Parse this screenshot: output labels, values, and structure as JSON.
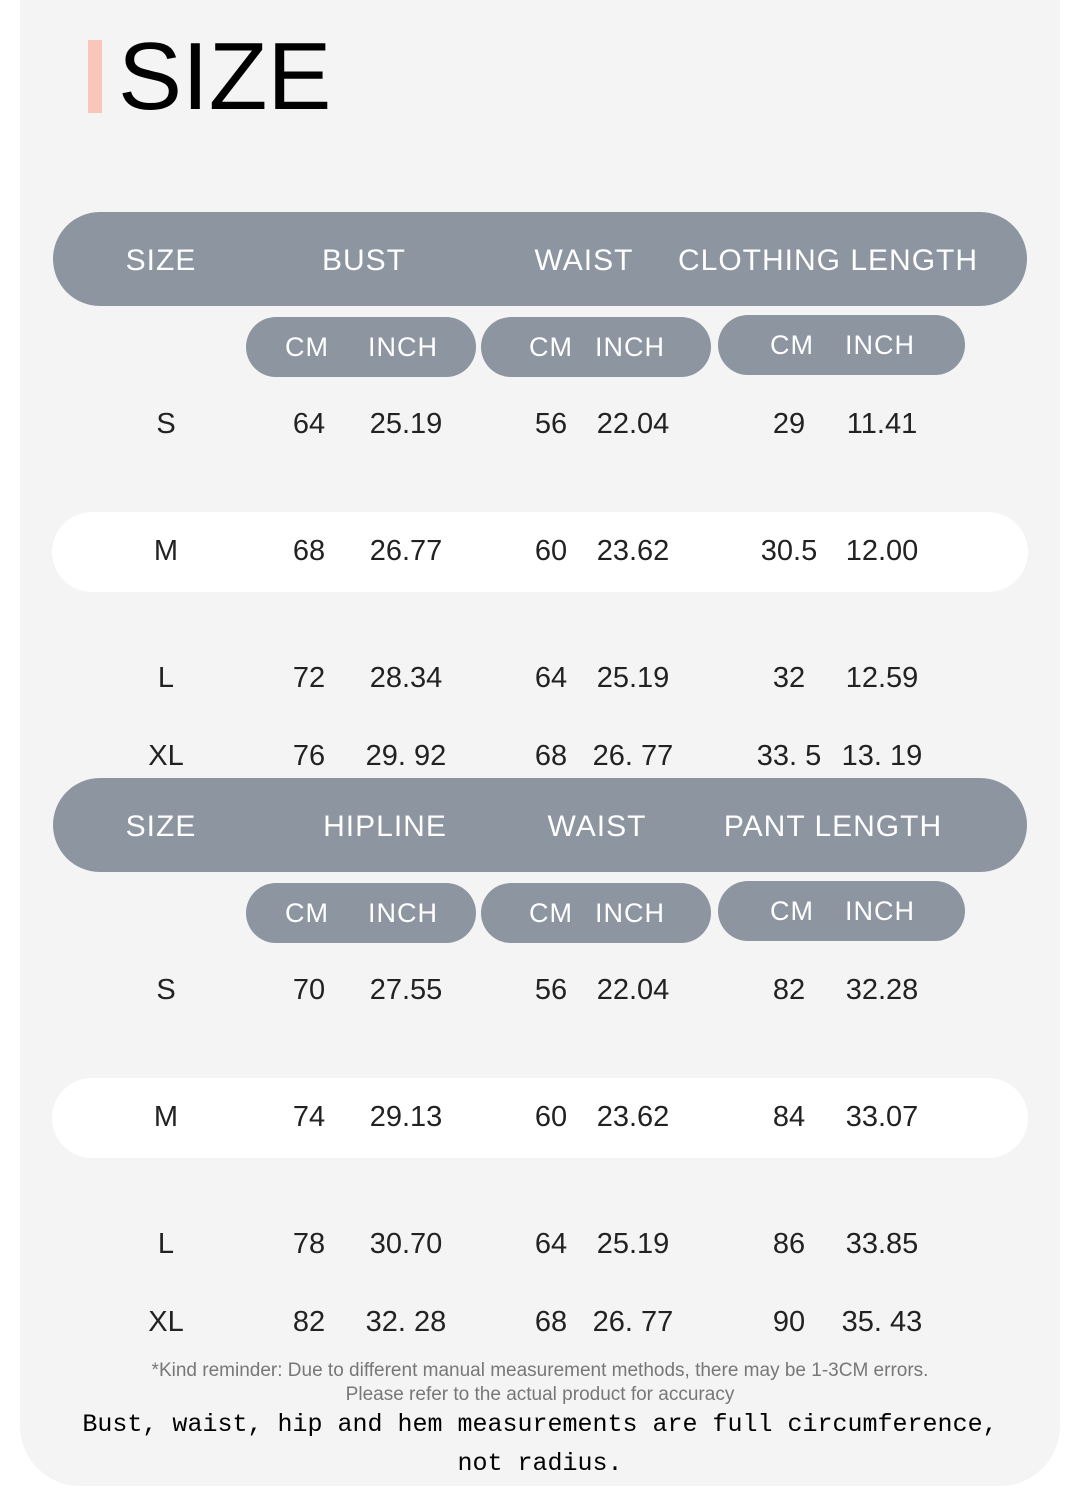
{
  "title": "SIZE",
  "colors": {
    "header_bg": "#8c95a0",
    "accent": "#f8c6ba",
    "card_bg": "#f4f4f4"
  },
  "tables": [
    {
      "headers": [
        "SIZE",
        "BUST",
        "WAIST",
        "CLOTHING LENGTH"
      ],
      "units": [
        [
          "CM",
          "INCH"
        ],
        [
          "CM",
          "INCH"
        ],
        [
          "CM",
          "INCH"
        ]
      ],
      "rows": [
        [
          "S",
          "64",
          "25.19",
          "56",
          "22.04",
          "29",
          "11.41"
        ],
        [
          "M",
          "68",
          "26.77",
          "60",
          "23.62",
          "30.5",
          "12.00"
        ],
        [
          "L",
          "72",
          "28.34",
          "64",
          "25.19",
          "32",
          "12.59"
        ],
        [
          "XL",
          "76",
          "29. 92",
          "68",
          "26. 77",
          "33. 5",
          "13. 19"
        ]
      ]
    },
    {
      "headers": [
        "SIZE",
        "HIPLINE",
        "WAIST",
        "PANT LENGTH"
      ],
      "units": [
        [
          "CM",
          "INCH"
        ],
        [
          "CM",
          "INCH"
        ],
        [
          "CM",
          "INCH"
        ]
      ],
      "rows": [
        [
          "S",
          "70",
          "27.55",
          "56",
          "22.04",
          "82",
          "32.28"
        ],
        [
          "M",
          "74",
          "29.13",
          "60",
          "23.62",
          "84",
          "33.07"
        ],
        [
          "L",
          "78",
          "30.70",
          "64",
          "25.19",
          "86",
          "33.85"
        ],
        [
          "XL",
          "82",
          "32. 28",
          "68",
          "26. 77",
          "90",
          "35. 43"
        ]
      ]
    }
  ],
  "reminder_line1": "*Kind reminder: Due to different manual measurement methods, there may be 1-3CM errors.",
  "reminder_line2": "Please refer to the actual product for accuracy",
  "note_line1": "Bust, waist, hip and hem measurements are full circumference,",
  "note_line2": "not radius."
}
